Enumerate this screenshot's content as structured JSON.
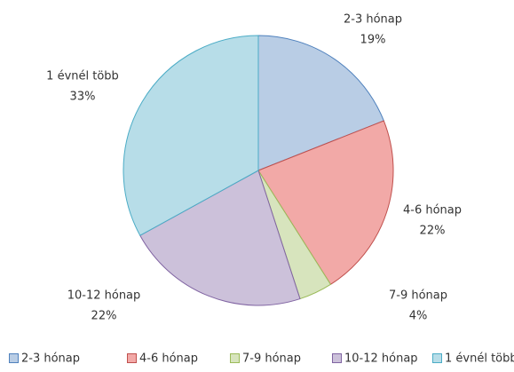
{
  "chart_data": {
    "type": "pie",
    "categories": [
      "2-3 hónap",
      "4-6 hónap",
      "7-9 hónap",
      "10-12 hónap",
      "1 évnél több"
    ],
    "values": [
      19,
      22,
      4,
      22,
      33
    ],
    "value_labels": [
      "19%",
      "22%",
      "4%",
      "22%",
      "33%"
    ],
    "colors": [
      "#b9cde5",
      "#f2a9a7",
      "#d7e4bd",
      "#ccc1da",
      "#b7dde8"
    ],
    "legend": "bottom"
  }
}
